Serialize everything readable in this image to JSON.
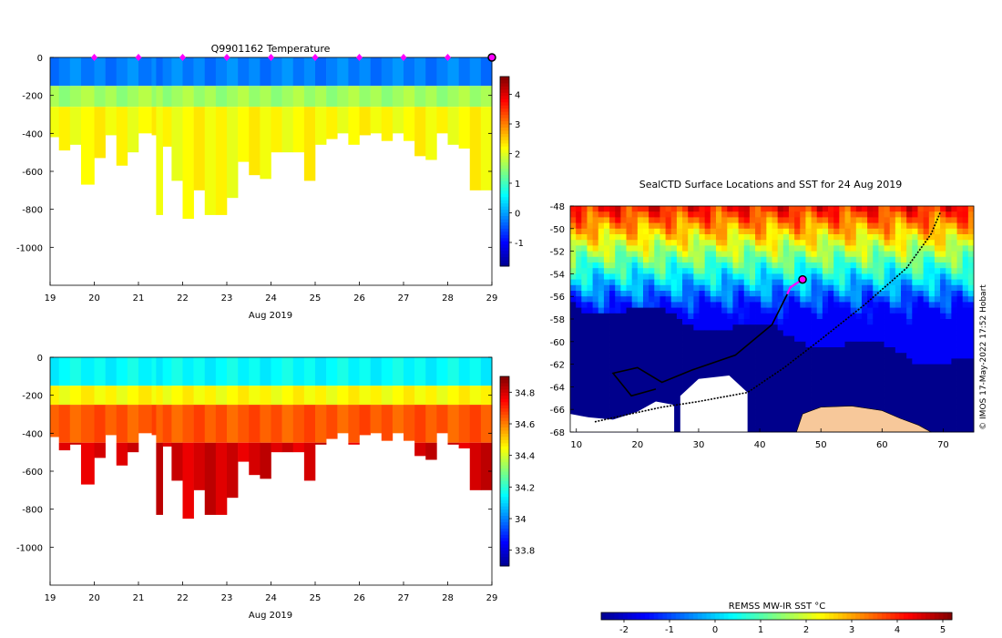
{
  "chart_data": [
    {
      "type": "heatmap",
      "name": "temperature-section",
      "title": "Q9901162  Temperature",
      "xlabel": "Aug 2019",
      "xticks": [
        "19",
        "20",
        "21",
        "22",
        "23",
        "24",
        "25",
        "26",
        "27",
        "28",
        "29"
      ],
      "xlim": [
        19,
        29
      ],
      "ylim": [
        -1200,
        0
      ],
      "yticks": [
        "0",
        "-200",
        "-400",
        "-600",
        "-800",
        "-1000"
      ],
      "colorbar_ticks": [
        "4",
        "3",
        "2",
        "1",
        "0",
        "-1"
      ],
      "colorbar_range": [
        -1.8,
        4.6
      ],
      "profile_days": [
        19.0,
        19.2,
        19.45,
        19.7,
        20.0,
        20.25,
        20.5,
        20.75,
        21.0,
        21.3,
        21.4,
        21.55,
        21.75,
        22.0,
        22.25,
        22.5,
        22.75,
        23.0,
        23.25,
        23.5,
        23.75,
        24.0,
        24.25,
        24.5,
        24.75,
        25.0,
        25.25,
        25.5,
        25.75,
        26.0,
        26.25,
        26.5,
        26.75,
        27.0,
        27.25,
        27.5,
        27.75,
        28.0,
        28.25,
        28.5,
        28.75,
        29.0
      ],
      "profile_max_depth": [
        -420,
        -490,
        -460,
        -670,
        -530,
        -410,
        -570,
        -500,
        -400,
        -410,
        -830,
        -470,
        -650,
        -850,
        -700,
        -830,
        -830,
        -740,
        -550,
        -620,
        -640,
        -500,
        -500,
        -500,
        -650,
        -460,
        -430,
        -400,
        -460,
        -410,
        -400,
        -440,
        -400,
        -440,
        -520,
        -540,
        -400,
        -460,
        -480,
        -700,
        -700,
        -700
      ],
      "surface_markers_days": [
        20,
        21,
        22,
        23,
        24,
        25,
        26,
        27,
        28
      ],
      "current_marker_day": 29,
      "layers_temperature": [
        {
          "depth_top": 0,
          "depth_bottom": -150,
          "value": -0.2
        },
        {
          "depth_top": -150,
          "depth_bottom": -260,
          "value": 1.6
        },
        {
          "depth_top": -260,
          "depth_bottom": -1200,
          "value": 2.2
        }
      ]
    },
    {
      "type": "heatmap",
      "name": "salinity-section",
      "xlabel": "Aug 2019",
      "xticks": [
        "19",
        "20",
        "21",
        "22",
        "23",
        "24",
        "25",
        "26",
        "27",
        "28",
        "29"
      ],
      "xlim": [
        19,
        29
      ],
      "ylim": [
        -1200,
        0
      ],
      "yticks": [
        "0",
        "-200",
        "-400",
        "-600",
        "-800",
        "-1000"
      ],
      "colorbar_ticks": [
        "34.8",
        "34.6",
        "34.4",
        "34.2",
        "34",
        "33.8"
      ],
      "colorbar_range": [
        33.7,
        34.9
      ],
      "layers_salinity": [
        {
          "depth_top": 0,
          "depth_bottom": -150,
          "value": 34.15
        },
        {
          "depth_top": -150,
          "depth_bottom": -250,
          "value": 34.45
        },
        {
          "depth_top": -250,
          "depth_bottom": -450,
          "value": 34.65
        },
        {
          "depth_top": -450,
          "depth_bottom": -1200,
          "value": 34.8
        }
      ]
    },
    {
      "type": "heatmap",
      "name": "sst-map",
      "title": "SealCTD Surface Locations and SST for 24 Aug 2019",
      "xlabel": "",
      "xticks": [
        "10",
        "20",
        "30",
        "40",
        "50",
        "60",
        "70"
      ],
      "xlim": [
        9,
        75
      ],
      "yticks": [
        "-48",
        "-50",
        "-52",
        "-54",
        "-56",
        "-58",
        "-60",
        "-62",
        "-64",
        "-66",
        "-68"
      ],
      "ylim": [
        -68,
        -48
      ],
      "colorbar_label": "REMSS MW-IR SST °C",
      "colorbar_ticks": [
        "-2",
        "-1",
        "0",
        "1",
        "2",
        "3",
        "4",
        "5"
      ],
      "colorbar_range": [
        -2.5,
        5.2
      ],
      "credit": "© IMOS 17-May-2022 17:52 Hobart",
      "current_position": {
        "lon": 47,
        "lat": -54.5
      }
    }
  ],
  "colors": {
    "jet": [
      "#00008f",
      "#0000ff",
      "#0080ff",
      "#00ffff",
      "#80ff80",
      "#ffff00",
      "#ff8000",
      "#ff0000",
      "#800000"
    ],
    "marker": "#ff00ff",
    "ice": "#00008c",
    "land": "#f7c89a"
  }
}
